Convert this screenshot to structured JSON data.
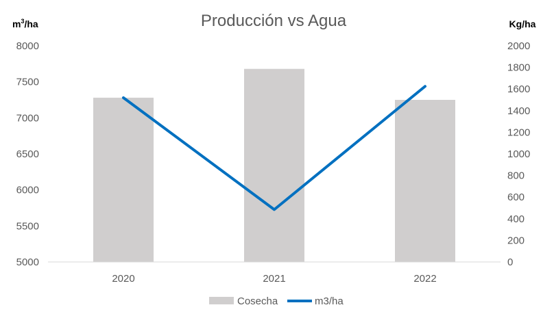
{
  "chart_data": {
    "type": "bar+line",
    "title": "Producción vs Agua",
    "categories": [
      "2020",
      "2021",
      "2022"
    ],
    "y_left": {
      "label_base": "m",
      "label_sup": "3",
      "label_tail": "/ha",
      "ylim": [
        5000,
        8000
      ],
      "ticks": [
        5000,
        5500,
        6000,
        6500,
        7000,
        7500,
        8000
      ]
    },
    "y_right": {
      "label": "Kg/ha",
      "ylim": [
        0,
        2000
      ],
      "ticks": [
        0,
        200,
        400,
        600,
        800,
        1000,
        1200,
        1400,
        1600,
        1800,
        2000
      ]
    },
    "series": [
      {
        "name": "Cosecha",
        "type": "bar",
        "axis": "left",
        "color": "#d0cece",
        "values": [
          7280,
          7680,
          7250
        ]
      },
      {
        "name": "m3/ha",
        "type": "line",
        "axis": "right",
        "color": "#0070c0",
        "values": [
          1520,
          485,
          1625
        ]
      }
    ],
    "legend_position": "bottom",
    "grid": false
  }
}
